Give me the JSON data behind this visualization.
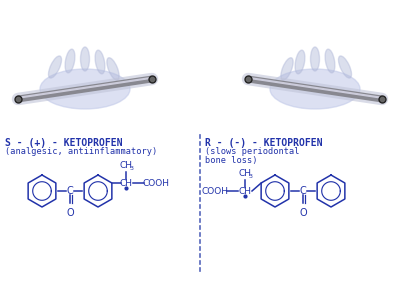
{
  "bg_color": "#ffffff",
  "molecule_color": "#2233aa",
  "divider_color": "#5566bb",
  "text_color": "#2233aa",
  "label_s": "S - (+) - KETOPROFEN",
  "sublabel_s": "(analgesic, antiinflammatory)",
  "label_r": "R - (-) - KETOPROFEN",
  "sublabel_r1": "(slows periodontal",
  "sublabel_r2": "bone loss)",
  "title_fontsize": 7.0,
  "sub_fontsize": 6.2,
  "fig_width": 4.0,
  "fig_height": 2.81,
  "dpi": 100
}
